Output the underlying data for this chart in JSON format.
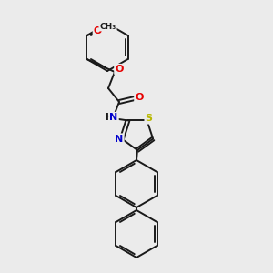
{
  "background_color": "#ebebeb",
  "bond_color": "#1a1a1a",
  "atom_colors": {
    "O": "#e60000",
    "N": "#0000cc",
    "S": "#b8b800",
    "C": "#1a1a1a"
  },
  "lw": 1.4,
  "figsize": [
    3.0,
    3.0
  ],
  "dpi": 100
}
